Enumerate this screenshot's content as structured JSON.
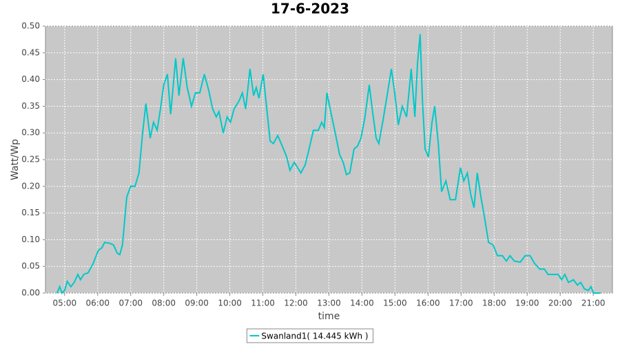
{
  "chart_data": {
    "type": "line",
    "title": "17-6-2023",
    "x_label": "time",
    "y_label": "Watt/Wp",
    "xlim": [
      4.42,
      21.58
    ],
    "xticks": [
      {
        "value": 5,
        "label": "05:00"
      },
      {
        "value": 6,
        "label": "06:00"
      },
      {
        "value": 7,
        "label": "07:00"
      },
      {
        "value": 8,
        "label": "08:00"
      },
      {
        "value": 9,
        "label": "09:00"
      },
      {
        "value": 10,
        "label": "10:00"
      },
      {
        "value": 11,
        "label": "11:00"
      },
      {
        "value": 12,
        "label": "12:00"
      },
      {
        "value": 13,
        "label": "13:00"
      },
      {
        "value": 14,
        "label": "14:00"
      },
      {
        "value": 15,
        "label": "15:00"
      },
      {
        "value": 16,
        "label": "16:00"
      },
      {
        "value": 17,
        "label": "17:00"
      },
      {
        "value": 18,
        "label": "18:00"
      },
      {
        "value": 19,
        "label": "19:00"
      },
      {
        "value": 20,
        "label": "20:00"
      },
      {
        "value": 21,
        "label": "21:00"
      }
    ],
    "ylim": [
      0,
      0.5
    ],
    "yticks": [
      {
        "value": 0,
        "label": "0.00"
      },
      {
        "value": 0.05,
        "label": "0.05"
      },
      {
        "value": 0.1,
        "label": "0.10"
      },
      {
        "value": 0.15,
        "label": "0.15"
      },
      {
        "value": 0.2,
        "label": "0.20"
      },
      {
        "value": 0.25,
        "label": "0.25"
      },
      {
        "value": 0.3,
        "label": "0.30"
      },
      {
        "value": 0.35,
        "label": "0.35"
      },
      {
        "value": 0.4,
        "label": "0.40"
      },
      {
        "value": 0.45,
        "label": "0.45"
      },
      {
        "value": 0.5,
        "label": "0.50"
      }
    ],
    "grid": true,
    "x": [
      4.77,
      4.85,
      4.92,
      5.0,
      5.08,
      5.19,
      5.29,
      5.4,
      5.48,
      5.58,
      5.71,
      5.86,
      6.02,
      6.13,
      6.21,
      6.38,
      6.48,
      6.59,
      6.67,
      6.75,
      6.88,
      7.0,
      7.13,
      7.25,
      7.36,
      7.46,
      7.59,
      7.69,
      7.8,
      7.9,
      8.0,
      8.11,
      8.21,
      8.36,
      8.46,
      8.59,
      8.71,
      8.84,
      8.96,
      9.09,
      9.23,
      9.36,
      9.48,
      9.59,
      9.67,
      9.8,
      9.92,
      10.02,
      10.13,
      10.28,
      10.38,
      10.48,
      10.61,
      10.72,
      10.8,
      10.88,
      11.01,
      11.11,
      11.22,
      11.32,
      11.45,
      11.59,
      11.72,
      11.82,
      11.95,
      12.05,
      12.15,
      12.28,
      12.38,
      12.53,
      12.68,
      12.78,
      12.86,
      12.94,
      13.07,
      13.19,
      13.32,
      13.43,
      13.53,
      13.63,
      13.76,
      13.86,
      13.97,
      14.09,
      14.22,
      14.32,
      14.43,
      14.51,
      14.64,
      14.76,
      14.89,
      14.99,
      15.1,
      15.22,
      15.35,
      15.49,
      15.6,
      15.68,
      15.76,
      15.83,
      15.91,
      16.01,
      16.12,
      16.2,
      16.31,
      16.41,
      16.54,
      16.67,
      16.83,
      16.98,
      17.08,
      17.19,
      17.29,
      17.39,
      17.49,
      17.6,
      17.7,
      17.83,
      17.97,
      18.1,
      18.25,
      18.37,
      18.48,
      18.61,
      18.79,
      18.94,
      19.09,
      19.23,
      19.38,
      19.52,
      19.63,
      19.79,
      19.94,
      20.04,
      20.14,
      20.25,
      20.4,
      20.52,
      20.62,
      20.73,
      20.85,
      20.93,
      21.01,
      21.22
    ],
    "series": [
      {
        "name": "Swanland1( 14.445 kWh )",
        "color": "#00c8c8",
        "values": [
          0,
          0.012,
          0,
          0.005,
          0.022,
          0.012,
          0.02,
          0.035,
          0.025,
          0.035,
          0.038,
          0.055,
          0.08,
          0.085,
          0.095,
          0.093,
          0.09,
          0.075,
          0.072,
          0.09,
          0.18,
          0.2,
          0.2,
          0.225,
          0.3,
          0.355,
          0.29,
          0.32,
          0.305,
          0.345,
          0.39,
          0.41,
          0.335,
          0.44,
          0.37,
          0.44,
          0.385,
          0.35,
          0.375,
          0.375,
          0.41,
          0.38,
          0.345,
          0.33,
          0.34,
          0.3,
          0.33,
          0.32,
          0.345,
          0.36,
          0.375,
          0.345,
          0.42,
          0.37,
          0.385,
          0.365,
          0.41,
          0.35,
          0.285,
          0.28,
          0.295,
          0.275,
          0.255,
          0.23,
          0.245,
          0.235,
          0.225,
          0.24,
          0.265,
          0.305,
          0.305,
          0.32,
          0.31,
          0.375,
          0.335,
          0.3,
          0.26,
          0.245,
          0.222,
          0.225,
          0.27,
          0.275,
          0.29,
          0.33,
          0.39,
          0.34,
          0.29,
          0.28,
          0.325,
          0.37,
          0.42,
          0.375,
          0.315,
          0.35,
          0.33,
          0.42,
          0.33,
          0.43,
          0.485,
          0.36,
          0.27,
          0.255,
          0.32,
          0.35,
          0.28,
          0.19,
          0.21,
          0.175,
          0.175,
          0.235,
          0.21,
          0.225,
          0.185,
          0.16,
          0.225,
          0.18,
          0.145,
          0.095,
          0.09,
          0.07,
          0.07,
          0.06,
          0.07,
          0.06,
          0.058,
          0.07,
          0.07,
          0.055,
          0.045,
          0.045,
          0.035,
          0.035,
          0.035,
          0.025,
          0.035,
          0.02,
          0.025,
          0.015,
          0.02,
          0.008,
          0.005,
          0.012,
          0,
          0
        ]
      }
    ],
    "legend": "bottom"
  }
}
